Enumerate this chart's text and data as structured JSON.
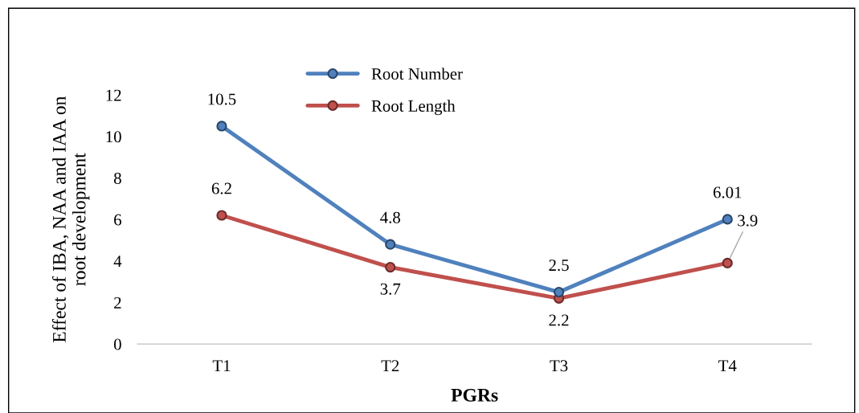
{
  "chart_data": {
    "type": "line",
    "xlabel": "PGRs",
    "ylabel": "Effect of IBA, NAA and IAA on\nroot development",
    "categories": [
      "T1",
      "T2",
      "T3",
      "T4"
    ],
    "series": [
      {
        "name": "Root Number",
        "color": "#4f81bd",
        "values": [
          10.5,
          4.8,
          2.5,
          6.01
        ]
      },
      {
        "name": "Root Length",
        "color": "#c0504d",
        "values": [
          6.2,
          3.7,
          2.2,
          3.9
        ]
      }
    ],
    "ylim": [
      0,
      12
    ],
    "yticks": [
      0,
      2,
      4,
      6,
      8,
      10,
      12
    ],
    "data_labels": true,
    "grid": false,
    "legend": "top left",
    "marker": "circle",
    "line_style": "solid"
  }
}
